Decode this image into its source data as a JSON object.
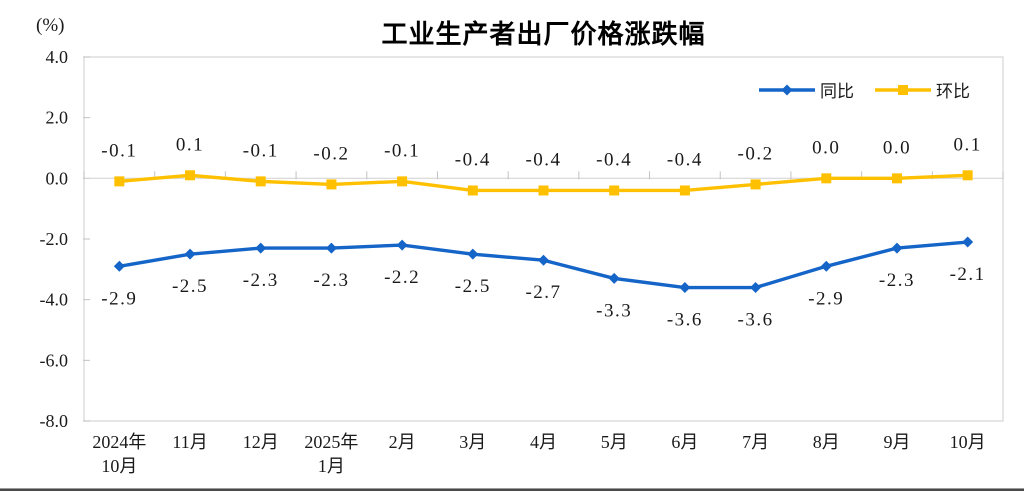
{
  "page": {
    "background": "#ffffff",
    "bottom_divider_color": "#4a4a4a"
  },
  "chart_data": {
    "type": "line",
    "title": "工业生产者出厂价格涨跌幅",
    "unit_label": "(%)",
    "categories": [
      "2024年\n10月",
      "11月",
      "12月",
      "2025年\n1月",
      "2月",
      "3月",
      "4月",
      "5月",
      "6月",
      "7月",
      "8月",
      "9月",
      "10月"
    ],
    "yticks": [
      4.0,
      2.0,
      0.0,
      -2.0,
      -4.0,
      -6.0,
      -8.0
    ],
    "ylim": [
      -8.0,
      4.0
    ],
    "grid": false,
    "legend_position": "top-right",
    "series": [
      {
        "name": "同比",
        "color": "#1565C8",
        "marker": "diamond",
        "label_position": "below",
        "values": [
          -2.9,
          -2.5,
          -2.3,
          -2.3,
          -2.2,
          -2.5,
          -2.7,
          -3.3,
          -3.6,
          -3.6,
          -2.9,
          -2.3,
          -2.1
        ]
      },
      {
        "name": "环比",
        "color": "#FFC000",
        "marker": "square",
        "label_position": "above",
        "values": [
          -0.1,
          0.1,
          -0.1,
          -0.2,
          -0.1,
          -0.4,
          -0.4,
          -0.4,
          -0.4,
          -0.2,
          0.0,
          0.0,
          0.1
        ]
      }
    ],
    "axis_color": "#D6D6D6",
    "tick_color": "#C2C2C2",
    "label_color": "#1a1a1a"
  }
}
